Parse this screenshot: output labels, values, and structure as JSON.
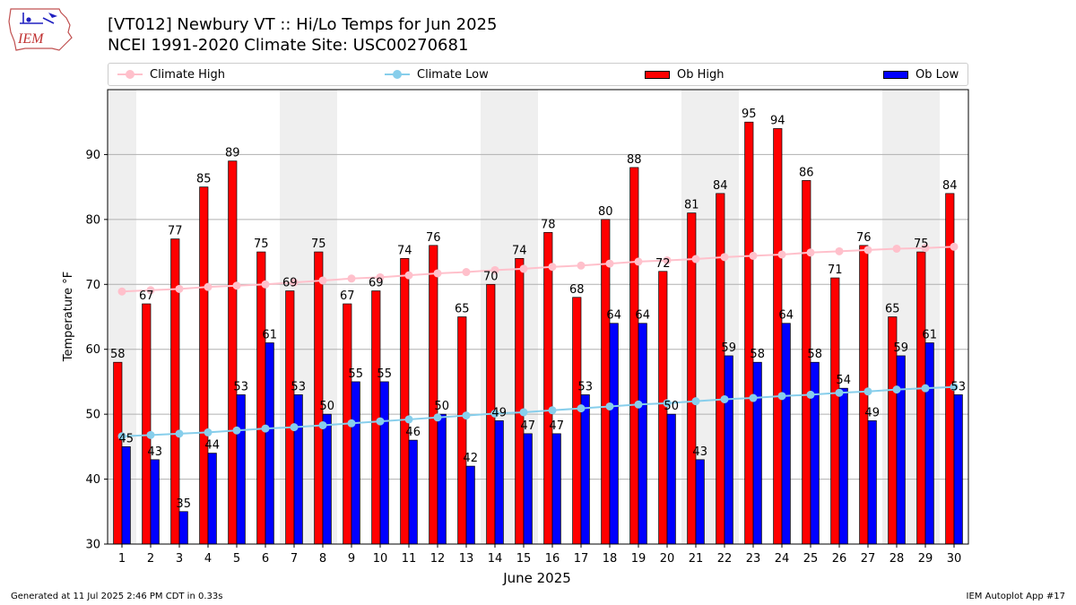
{
  "title_line1": "[VT012] Newbury  VT :: Hi/Lo Temps for Jun 2025",
  "title_line2": "NCEI 1991-2020 Climate Site: USC00270681",
  "logo_text": "IEM",
  "footer_left": "Generated at 11 Jul 2025 2:46 PM CDT in 0.33s",
  "footer_right": "IEM Autoplot App #17",
  "colors": {
    "ob_high": "#ff0000",
    "ob_low": "#0000ff",
    "climate_high": "#ffc0cb",
    "climate_low": "#87ceeb",
    "weekend_band": "#efefef",
    "grid": "#b0b0b0"
  },
  "legend": [
    {
      "label": "Climate High",
      "kind": "line",
      "color": "#ffc0cb"
    },
    {
      "label": "Climate Low",
      "kind": "line",
      "color": "#87ceeb"
    },
    {
      "label": "Ob High",
      "kind": "patch",
      "color": "#ff0000"
    },
    {
      "label": "Ob Low",
      "kind": "patch",
      "color": "#0000ff"
    }
  ],
  "chart_data": {
    "type": "bar",
    "xlabel": "June 2025",
    "ylabel": "Temperature °F",
    "ylim": [
      30,
      100
    ],
    "yticks": [
      30,
      40,
      50,
      60,
      70,
      80,
      90
    ],
    "grid": true,
    "legend_position": "top",
    "categories": [
      "1",
      "2",
      "3",
      "4",
      "5",
      "6",
      "7",
      "8",
      "9",
      "10",
      "11",
      "12",
      "13",
      "14",
      "15",
      "16",
      "17",
      "18",
      "19",
      "20",
      "21",
      "22",
      "23",
      "24",
      "25",
      "26",
      "27",
      "28",
      "29",
      "30"
    ],
    "shaded_days": [
      1,
      7,
      8,
      14,
      15,
      21,
      22,
      28,
      29
    ],
    "bar_series": [
      {
        "name": "Ob High",
        "values": [
          58,
          67,
          77,
          85,
          89,
          75,
          69,
          75,
          67,
          69,
          74,
          76,
          65,
          70,
          74,
          78,
          68,
          80,
          88,
          72,
          81,
          84,
          95,
          94,
          86,
          71,
          76,
          65,
          75,
          84
        ]
      },
      {
        "name": "Ob Low",
        "values": [
          45,
          43,
          35,
          44,
          53,
          61,
          53,
          50,
          55,
          55,
          46,
          50,
          42,
          49,
          47,
          47,
          53,
          64,
          64,
          50,
          43,
          59,
          58,
          64,
          58,
          54,
          49,
          59,
          61,
          53
        ]
      }
    ],
    "line_series": [
      {
        "name": "Climate High",
        "values": [
          68.9,
          69.1,
          69.3,
          69.6,
          69.8,
          70.0,
          70.3,
          70.6,
          70.9,
          71.1,
          71.4,
          71.7,
          71.9,
          72.2,
          72.4,
          72.7,
          72.9,
          73.2,
          73.5,
          73.7,
          73.9,
          74.2,
          74.4,
          74.6,
          74.9,
          75.1,
          75.3,
          75.5,
          75.6,
          75.8
        ]
      },
      {
        "name": "Climate Low",
        "values": [
          46.6,
          46.8,
          47.0,
          47.2,
          47.5,
          47.8,
          48.0,
          48.3,
          48.6,
          48.9,
          49.2,
          49.5,
          49.8,
          50.1,
          50.3,
          50.6,
          50.9,
          51.2,
          51.5,
          51.7,
          52.0,
          52.3,
          52.5,
          52.8,
          53.0,
          53.3,
          53.5,
          53.8,
          54.0,
          54.2
        ]
      }
    ]
  }
}
